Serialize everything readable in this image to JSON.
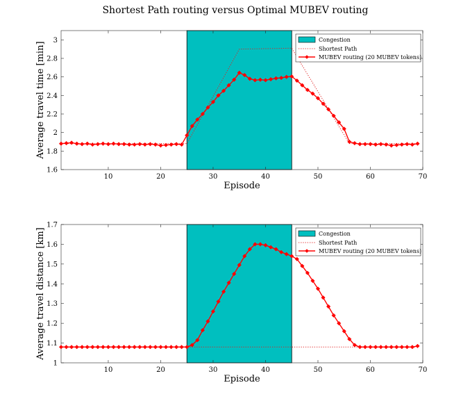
{
  "figure": {
    "title": "Shortest Path routing versus Optimal MUBEV routing"
  },
  "chart_data": [
    {
      "type": "line",
      "xlabel": "Episode",
      "ylabel": "Average travel time [min]",
      "xlim": [
        1,
        70
      ],
      "ylim": [
        1.6,
        3.1
      ],
      "xticks": [
        10,
        20,
        30,
        40,
        50,
        60,
        70
      ],
      "yticks": [
        1.6,
        1.8,
        2,
        2.2,
        2.4,
        2.6,
        2.8,
        3
      ],
      "ytick_labels": [
        "1.6",
        "1.8",
        "2",
        "2.2",
        "2.4",
        "2.6",
        "2.8",
        "3"
      ],
      "grid": false,
      "legend_position": "top-right",
      "congestion": {
        "x_start": 25,
        "x_end": 45,
        "color": "#00bfbf"
      },
      "legend": {
        "congestion": "Congestion",
        "shortest": "Shortest Path",
        "mubev": "MUBEV routing (20 MUBEV tokens)"
      },
      "series": [
        {
          "name": "Shortest Path",
          "style": "dotted",
          "color": "#e02020",
          "x": [
            1,
            25,
            35,
            45,
            56,
            69
          ],
          "y": [
            1.88,
            1.88,
            2.9,
            2.91,
            1.88,
            1.88
          ]
        },
        {
          "name": "MUBEV routing (20 MUBEV tokens)",
          "style": "solid-diamond",
          "color": "#ff0000",
          "x": [
            1,
            2,
            3,
            4,
            5,
            6,
            7,
            8,
            9,
            10,
            11,
            12,
            13,
            14,
            15,
            16,
            17,
            18,
            19,
            20,
            21,
            22,
            23,
            24,
            25,
            26,
            27,
            28,
            29,
            30,
            31,
            32,
            33,
            34,
            35,
            36,
            37,
            38,
            39,
            40,
            41,
            42,
            43,
            44,
            45,
            46,
            47,
            48,
            49,
            50,
            51,
            52,
            53,
            54,
            55,
            56,
            57,
            58,
            59,
            60,
            61,
            62,
            63,
            64,
            65,
            66,
            67,
            68,
            69
          ],
          "y": [
            1.88,
            1.885,
            1.89,
            1.88,
            1.875,
            1.88,
            1.87,
            1.875,
            1.88,
            1.875,
            1.88,
            1.875,
            1.875,
            1.87,
            1.87,
            1.875,
            1.87,
            1.875,
            1.87,
            1.86,
            1.865,
            1.87,
            1.875,
            1.87,
            1.97,
            2.07,
            2.14,
            2.2,
            2.27,
            2.33,
            2.4,
            2.45,
            2.51,
            2.57,
            2.645,
            2.62,
            2.58,
            2.565,
            2.57,
            2.565,
            2.575,
            2.585,
            2.59,
            2.6,
            2.605,
            2.56,
            2.51,
            2.46,
            2.42,
            2.37,
            2.31,
            2.25,
            2.18,
            2.11,
            2.04,
            1.9,
            1.885,
            1.875,
            1.875,
            1.875,
            1.87,
            1.875,
            1.87,
            1.86,
            1.865,
            1.87,
            1.875,
            1.87,
            1.88
          ]
        }
      ]
    },
    {
      "type": "line",
      "xlabel": "Episode",
      "ylabel": "Average travel distance [km]",
      "xlim": [
        1,
        70
      ],
      "ylim": [
        1.0,
        1.7
      ],
      "xticks": [
        10,
        20,
        30,
        40,
        50,
        60,
        70
      ],
      "yticks": [
        1,
        1.1,
        1.2,
        1.3,
        1.4,
        1.5,
        1.6,
        1.7
      ],
      "ytick_labels": [
        "1",
        "1.1",
        "1.2",
        "1.3",
        "1.4",
        "1.5",
        "1.6",
        "1.7"
      ],
      "grid": false,
      "legend_position": "top-right",
      "congestion": {
        "x_start": 25,
        "x_end": 45,
        "color": "#00bfbf"
      },
      "legend": {
        "congestion": "Congestion",
        "shortest": "Shortest Path",
        "mubev": "MUBEV routing (20 MUBEV tokens)"
      },
      "series": [
        {
          "name": "Shortest Path",
          "style": "dotted",
          "color": "#e02020",
          "x": [
            1,
            69
          ],
          "y": [
            1.08,
            1.08
          ]
        },
        {
          "name": "MUBEV routing (20 MUBEV tokens)",
          "style": "solid-diamond",
          "color": "#ff0000",
          "x": [
            1,
            2,
            3,
            4,
            5,
            6,
            7,
            8,
            9,
            10,
            11,
            12,
            13,
            14,
            15,
            16,
            17,
            18,
            19,
            20,
            21,
            22,
            23,
            24,
            25,
            26,
            27,
            28,
            29,
            30,
            31,
            32,
            33,
            34,
            35,
            36,
            37,
            38,
            39,
            40,
            41,
            42,
            43,
            44,
            45,
            46,
            47,
            48,
            49,
            50,
            51,
            52,
            53,
            54,
            55,
            56,
            57,
            58,
            59,
            60,
            61,
            62,
            63,
            64,
            65,
            66,
            67,
            68,
            69
          ],
          "y": [
            1.08,
            1.08,
            1.08,
            1.08,
            1.08,
            1.08,
            1.08,
            1.08,
            1.08,
            1.08,
            1.08,
            1.08,
            1.08,
            1.08,
            1.08,
            1.08,
            1.08,
            1.08,
            1.08,
            1.08,
            1.08,
            1.08,
            1.08,
            1.08,
            1.08,
            1.09,
            1.115,
            1.165,
            1.21,
            1.26,
            1.31,
            1.36,
            1.405,
            1.45,
            1.495,
            1.54,
            1.575,
            1.6,
            1.6,
            1.595,
            1.585,
            1.575,
            1.56,
            1.55,
            1.54,
            1.525,
            1.49,
            1.455,
            1.415,
            1.375,
            1.33,
            1.285,
            1.24,
            1.2,
            1.16,
            1.12,
            1.09,
            1.08,
            1.08,
            1.08,
            1.08,
            1.08,
            1.08,
            1.08,
            1.08,
            1.08,
            1.08,
            1.08,
            1.085
          ]
        }
      ]
    }
  ]
}
